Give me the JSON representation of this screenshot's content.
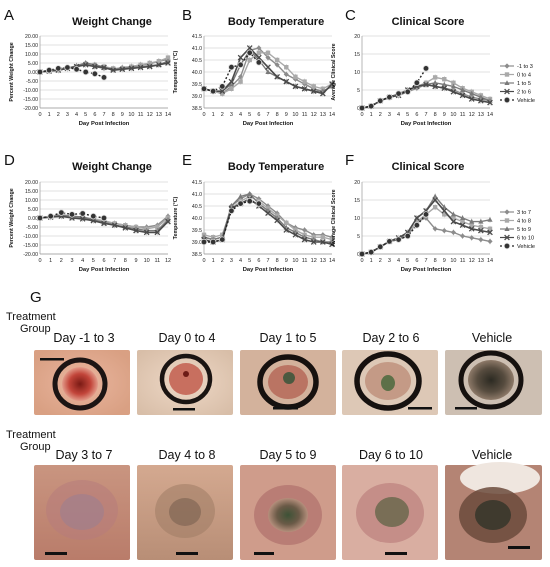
{
  "panel_letters": {
    "A": "A",
    "B": "B",
    "C": "C",
    "D": "D",
    "E": "E",
    "F": "F",
    "G": "G"
  },
  "chart_data": [
    {
      "id": "A",
      "type": "line",
      "title": "Weight Change",
      "xlabel": "Day Post Infection",
      "ylabel": "Percent Weight Change",
      "x": [
        0,
        1,
        2,
        3,
        4,
        5,
        6,
        7,
        8,
        9,
        10,
        11,
        12,
        13,
        14
      ],
      "xticks": [
        "0",
        "1",
        "2",
        "3",
        "4",
        "5",
        "6",
        "7",
        "8",
        "9",
        "10",
        "11",
        "12",
        "13",
        "14"
      ],
      "ylim": [
        -20,
        20
      ],
      "yticks": [
        "-20.00",
        "-15.00",
        "-10.00",
        "-5.00",
        "0.00",
        "5.00",
        "10.00",
        "15.00",
        "20.00"
      ],
      "grid": true,
      "series": [
        {
          "key": "s1",
          "values": [
            0,
            0.5,
            1.5,
            2.5,
            3,
            5,
            3,
            2,
            1.5,
            2.5,
            3,
            4,
            4.5,
            6,
            7
          ]
        },
        {
          "key": "s2",
          "values": [
            0,
            0.5,
            1,
            2,
            3,
            4.5,
            4,
            3,
            2,
            2,
            3,
            4,
            5,
            6,
            8
          ]
        },
        {
          "key": "s3",
          "values": [
            0,
            0.5,
            1,
            2,
            3.5,
            5,
            4,
            2.5,
            1.5,
            2,
            2.5,
            3,
            3.5,
            4,
            6
          ]
        },
        {
          "key": "s4",
          "values": [
            0,
            0.5,
            1,
            2,
            3,
            4,
            3,
            2.5,
            1,
            1.5,
            2,
            2.5,
            3,
            4,
            5
          ]
        },
        {
          "key": "veh",
          "values": [
            0,
            1,
            2,
            2.5,
            1.5,
            0,
            -1,
            -3,
            null,
            null,
            null,
            null,
            null,
            null,
            null
          ]
        }
      ]
    },
    {
      "id": "B",
      "type": "line",
      "title": "Body Temperature",
      "xlabel": "Day Post Infection",
      "ylabel": "Temperature (°C)",
      "x": [
        0,
        1,
        2,
        3,
        4,
        5,
        6,
        7,
        8,
        9,
        10,
        11,
        12,
        13,
        14
      ],
      "xticks": [
        "0",
        "1",
        "2",
        "3",
        "4",
        "5",
        "6",
        "7",
        "8",
        "9",
        "10",
        "11",
        "12",
        "13",
        "14"
      ],
      "ylim": [
        38.5,
        41.5
      ],
      "yticks": [
        "38.5",
        "39.0",
        "39.5",
        "40.0",
        "40.5",
        "41.0",
        "41.5"
      ],
      "grid": true,
      "series": [
        {
          "key": "s1",
          "values": [
            39.3,
            39.2,
            39.1,
            39.4,
            39.8,
            40.9,
            41.0,
            40.6,
            40.3,
            39.9,
            39.7,
            39.5,
            39.3,
            39.2,
            39.4
          ]
        },
        {
          "key": "s2",
          "values": [
            39.3,
            39.2,
            39.1,
            39.3,
            39.6,
            40.5,
            40.8,
            40.8,
            40.5,
            40.2,
            39.8,
            39.6,
            39.4,
            39.3,
            39.5
          ]
        },
        {
          "key": "s3",
          "values": [
            39.3,
            39.2,
            39.2,
            39.5,
            40.3,
            40.9,
            40.5,
            40.0,
            39.8,
            39.6,
            39.4,
            39.3,
            39.2,
            39.2,
            39.4
          ]
        },
        {
          "key": "s4",
          "values": [
            39.3,
            39.2,
            39.2,
            39.6,
            40.6,
            41.0,
            40.6,
            40.2,
            39.8,
            39.6,
            39.4,
            39.3,
            39.2,
            39.1,
            39.5
          ]
        },
        {
          "key": "veh",
          "values": [
            39.3,
            39.2,
            39.4,
            40.2,
            40.3,
            40.8,
            40.4,
            null,
            null,
            null,
            null,
            null,
            null,
            null,
            null
          ]
        }
      ]
    },
    {
      "id": "C",
      "type": "line",
      "title": "Clinical Score",
      "xlabel": "Day Post Infection",
      "ylabel": "Average Clinical Score",
      "x": [
        0,
        1,
        2,
        3,
        4,
        5,
        6,
        7,
        8,
        9,
        10,
        11,
        12,
        13,
        14
      ],
      "xticks": [
        "0",
        "1",
        "2",
        "3",
        "4",
        "5",
        "6",
        "7",
        "8",
        "9",
        "10",
        "11",
        "12",
        "13",
        "14"
      ],
      "ylim": [
        0,
        20
      ],
      "yticks": [
        "0",
        "5",
        "10",
        "15",
        "20"
      ],
      "grid": true,
      "series": [
        {
          "key": "s1",
          "values": [
            0,
            0.5,
            2,
            3,
            3.5,
            4.5,
            5.5,
            6.5,
            6,
            5.5,
            5,
            4,
            3,
            2.5,
            2
          ]
        },
        {
          "key": "s2",
          "values": [
            0,
            0.5,
            2,
            3,
            4,
            5,
            6,
            7,
            8.5,
            8,
            7,
            5.5,
            4.5,
            3.5,
            2.5
          ]
        },
        {
          "key": "s3",
          "values": [
            0,
            0.5,
            2,
            3,
            4,
            5,
            6,
            6.5,
            7,
            6.5,
            6,
            5,
            4,
            3,
            2
          ]
        },
        {
          "key": "s4",
          "values": [
            0,
            0.5,
            2,
            3,
            3.5,
            5,
            6,
            6.5,
            6,
            5.5,
            4.5,
            3.5,
            2.5,
            2,
            1.5
          ]
        },
        {
          "key": "veh",
          "values": [
            0,
            0.5,
            2,
            3,
            4,
            4.5,
            7,
            11,
            null,
            null,
            null,
            null,
            null,
            null,
            null
          ]
        }
      ],
      "legend": [
        "-1 to 3",
        "0 to 4",
        "1 to 5",
        "2 to 6",
        "Vehicle"
      ]
    },
    {
      "id": "D",
      "type": "line",
      "title": "Weight Change",
      "xlabel": "Day Post Infection",
      "ylabel": "Percent Weight Change",
      "x": [
        0,
        1,
        2,
        3,
        4,
        5,
        6,
        7,
        8,
        9,
        10,
        11,
        12
      ],
      "xticks": [
        "0",
        "1",
        "2",
        "3",
        "4",
        "5",
        "6",
        "7",
        "8",
        "9",
        "10",
        "11",
        "12"
      ],
      "ylim": [
        -20,
        20
      ],
      "yticks": [
        "-20.00",
        "-15.00",
        "-10.00",
        "-5.00",
        "0.00",
        "5.00",
        "10.00",
        "15.00",
        "20.00"
      ],
      "grid": true,
      "series": [
        {
          "key": "s1",
          "values": [
            0,
            0.5,
            1,
            0.5,
            0,
            -1,
            -2,
            -3,
            -4,
            -5,
            -5,
            -4,
            1
          ]
        },
        {
          "key": "s2",
          "values": [
            0,
            1,
            2,
            1,
            0.5,
            -0.5,
            -1.5,
            -3,
            -4,
            -5,
            -6,
            -5,
            0
          ]
        },
        {
          "key": "s3",
          "values": [
            0,
            0.5,
            1.5,
            1,
            0.5,
            -1,
            -2.5,
            -4,
            -5,
            -6,
            -7,
            -7,
            -1
          ]
        },
        {
          "key": "s4",
          "values": [
            0,
            0.5,
            1,
            0,
            -0.5,
            -1.5,
            -3,
            -4,
            -5.5,
            -7,
            -8,
            -8,
            -2
          ]
        },
        {
          "key": "veh",
          "values": [
            0,
            1,
            3,
            2,
            2.5,
            1,
            0,
            null,
            null,
            null,
            null,
            null,
            null
          ]
        }
      ]
    },
    {
      "id": "E",
      "type": "line",
      "title": "Body Temperature",
      "xlabel": "Day Post Infection",
      "ylabel": "Temperature (°C)",
      "x": [
        0,
        1,
        2,
        3,
        4,
        5,
        6,
        7,
        8,
        9,
        10,
        11,
        12,
        13,
        14
      ],
      "xticks": [
        "0",
        "1",
        "2",
        "3",
        "4",
        "5",
        "6",
        "7",
        "8",
        "9",
        "10",
        "11",
        "12",
        "13",
        "14"
      ],
      "ylim": [
        38.5,
        41.5
      ],
      "yticks": [
        "38.5",
        "39.0",
        "39.5",
        "40.0",
        "40.5",
        "41.0",
        "41.5"
      ],
      "grid": true,
      "series": [
        {
          "key": "s1",
          "values": [
            39.2,
            39.1,
            39.2,
            40.5,
            40.8,
            41.0,
            40.8,
            40.5,
            40.2,
            39.8,
            39.6,
            39.5,
            39.3,
            39.3,
            39.2
          ]
        },
        {
          "key": "s2",
          "values": [
            39.3,
            39.2,
            39.3,
            40.4,
            40.7,
            40.9,
            40.7,
            40.4,
            40.1,
            39.8,
            39.5,
            39.3,
            39.2,
            39.2,
            39.1
          ]
        },
        {
          "key": "s3",
          "values": [
            39.2,
            39.1,
            39.2,
            40.5,
            40.9,
            41.0,
            40.6,
            40.3,
            40.0,
            39.6,
            39.4,
            39.2,
            39.1,
            39.0,
            39.0
          ]
        },
        {
          "key": "s4",
          "values": [
            39.1,
            39.0,
            39.1,
            40.4,
            40.6,
            40.8,
            40.5,
            40.2,
            39.9,
            39.5,
            39.3,
            39.1,
            39.0,
            39.0,
            38.9
          ]
        },
        {
          "key": "veh",
          "values": [
            39.0,
            39.0,
            39.1,
            40.3,
            40.6,
            40.7,
            40.6,
            null,
            null,
            null,
            null,
            null,
            null,
            null,
            null
          ]
        }
      ]
    },
    {
      "id": "F",
      "type": "line",
      "title": "Clinical Score",
      "xlabel": "Day Post Infection",
      "ylabel": "Average Clinical Score",
      "x": [
        0,
        1,
        2,
        3,
        4,
        5,
        6,
        7,
        8,
        9,
        10,
        11,
        12,
        13,
        14
      ],
      "xticks": [
        "0",
        "1",
        "2",
        "3",
        "4",
        "5",
        "6",
        "7",
        "8",
        "9",
        "10",
        "11",
        "12",
        "13",
        "14"
      ],
      "ylim": [
        0,
        20
      ],
      "yticks": [
        "0",
        "5",
        "10",
        "15",
        "20"
      ],
      "grid": true,
      "series": [
        {
          "key": "s1",
          "values": [
            0,
            0.5,
            2,
            3.5,
            4,
            5,
            9,
            10,
            7,
            6.5,
            6,
            5,
            4.5,
            4,
            3.5
          ]
        },
        {
          "key": "s2",
          "values": [
            0,
            0.5,
            2,
            3.5,
            4,
            5.5,
            9,
            11,
            13,
            11,
            10,
            9,
            8,
            7.5,
            7
          ]
        },
        {
          "key": "s3",
          "values": [
            0,
            0.5,
            2,
            3.5,
            4,
            6,
            10,
            12,
            16,
            13,
            11,
            10,
            9,
            9,
            9.5
          ]
        },
        {
          "key": "s4",
          "values": [
            0,
            0.5,
            2,
            3.5,
            4.5,
            6,
            10,
            12,
            15,
            12,
            9,
            8,
            7,
            6.5,
            6
          ]
        },
        {
          "key": "veh",
          "values": [
            0,
            0.5,
            2,
            3.5,
            4,
            5,
            8,
            11,
            null,
            null,
            null,
            null,
            null,
            null,
            null
          ]
        }
      ],
      "legend": [
        "3 to 7",
        "4 to 8",
        "5 to 9",
        "6 to 10",
        "Vehicle"
      ]
    }
  ],
  "photo_section": {
    "group_label_line1": "Treatment",
    "group_label_line2": "Group",
    "row1": [
      "Day -1 to 3",
      "Day 0 to 4",
      "Day 1 to 5",
      "Day 2 to 6",
      "Vehicle"
    ],
    "row2": [
      "Day 3 to 7",
      "Day 4 to 8",
      "Day 5 to 9",
      "Day 6 to 10",
      "Vehicle"
    ]
  }
}
